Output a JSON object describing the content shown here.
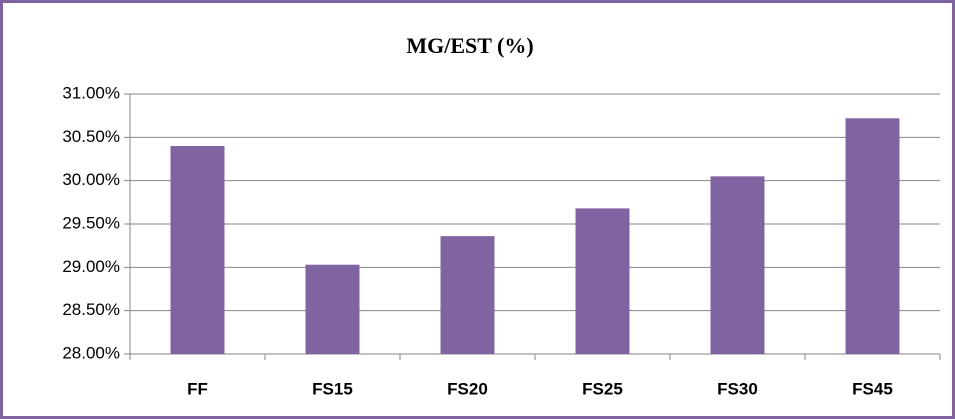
{
  "chart_data": {
    "type": "bar",
    "title": "MG/EST (%)",
    "categories": [
      "FF",
      "FS15",
      "FS20",
      "FS25",
      "FS30",
      "FS45"
    ],
    "values": [
      30.4,
      29.03,
      29.36,
      29.68,
      30.05,
      30.72
    ],
    "color": "#8064a2",
    "ylim": [
      28,
      31
    ],
    "yticks": [
      {
        "value": 28,
        "label": "28.00%"
      },
      {
        "value": 28.5,
        "label": "28.50%"
      },
      {
        "value": 29,
        "label": "29.00%"
      },
      {
        "value": 29.5,
        "label": "29.50%"
      },
      {
        "value": 30,
        "label": "30.00%"
      },
      {
        "value": 30.5,
        "label": "30.50%"
      },
      {
        "value": 31,
        "label": "31.00%"
      }
    ],
    "grid": true
  }
}
